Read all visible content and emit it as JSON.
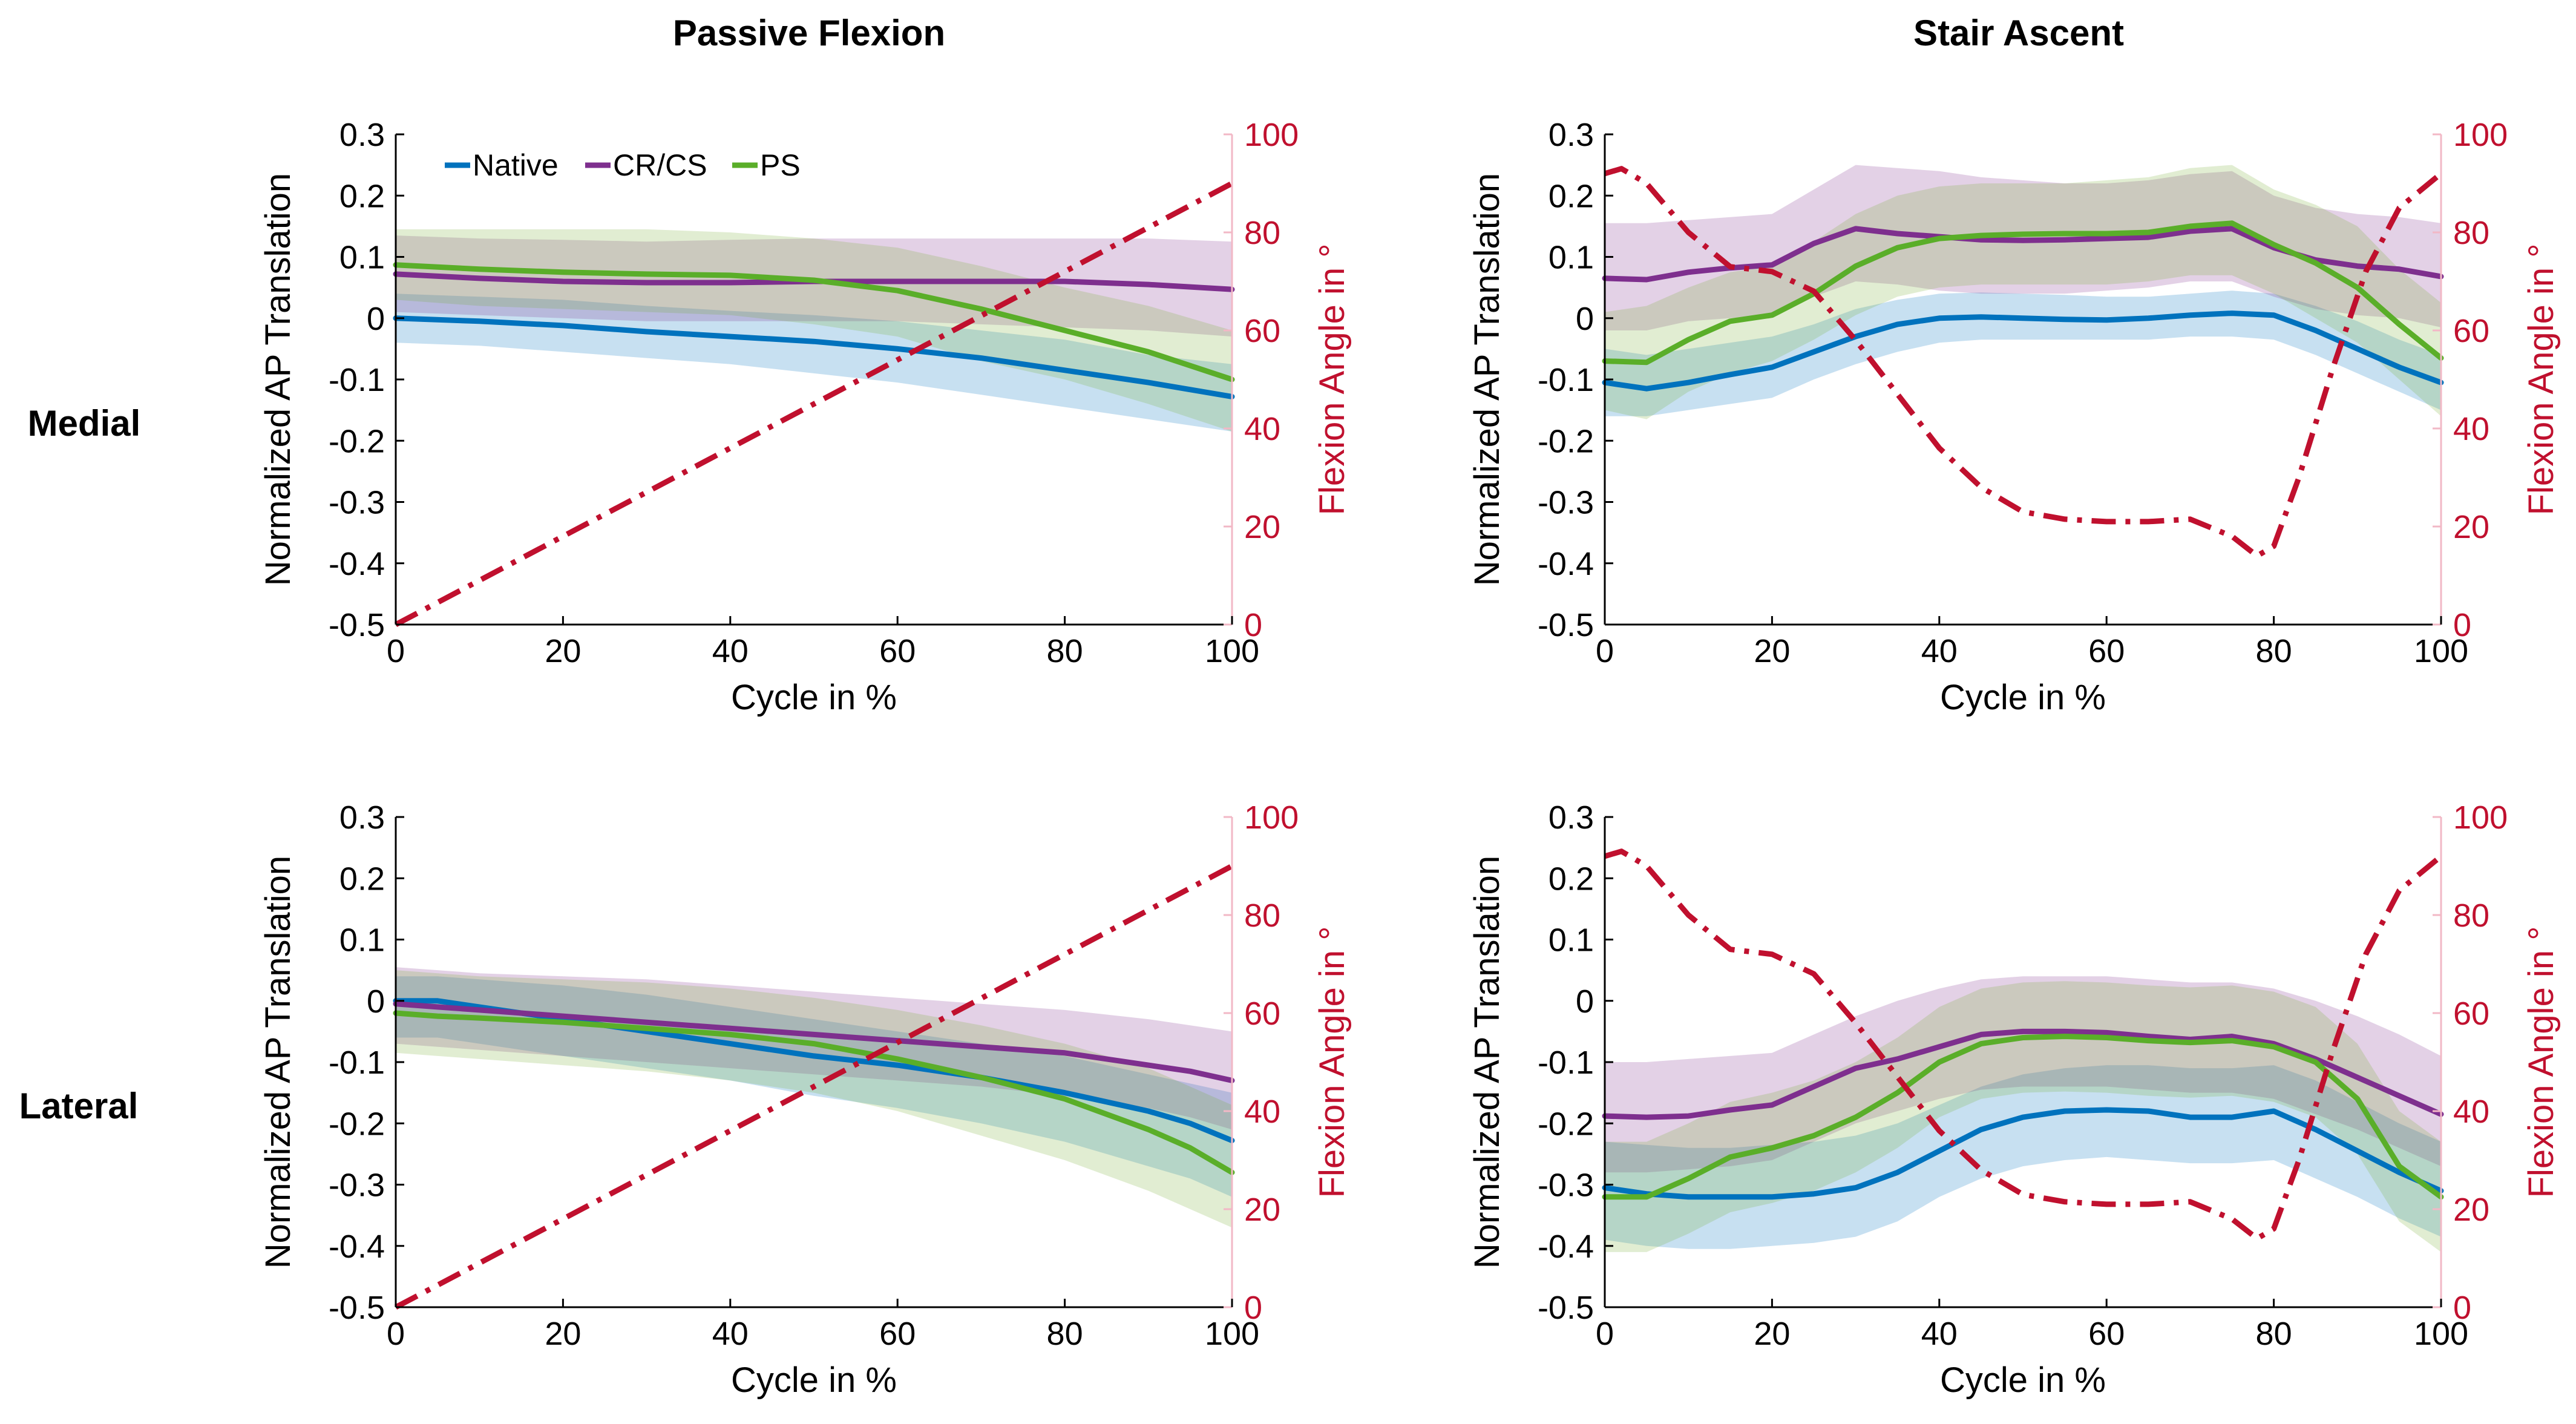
{
  "colors": {
    "native": "#0072BD",
    "cr_cs": "#7E2F8E",
    "ps": "#5AAE29",
    "flexion": "#C0102E",
    "native_band": "#0072BD",
    "cr_cs_band": "#7E2F8E",
    "ps_band": "#77AC30"
  },
  "column_titles": [
    "Passive Flexion",
    "Stair Ascent"
  ],
  "row_labels": [
    "Medial",
    "Lateral"
  ],
  "legend": [
    "Native",
    "CR/CS",
    "PS"
  ],
  "chart_data": [
    {
      "id": "medial-passive",
      "type": "line",
      "xlabel": "Cycle in %",
      "ylabel": "Normalized AP Translation",
      "y2label": "Flexion Angle in °",
      "xlim": [
        0,
        100
      ],
      "ylim": [
        -0.5,
        0.3
      ],
      "y2lim": [
        0,
        100
      ],
      "xticks": [
        "0",
        "20",
        "40",
        "60",
        "80",
        "100"
      ],
      "yticks": [
        "0.3",
        "0.2",
        "0.1",
        "0",
        "-0.1",
        "-0.2",
        "-0.3",
        "-0.4",
        "-0.5"
      ],
      "y2ticks": [
        "100",
        "80",
        "60",
        "40",
        "20",
        "0"
      ],
      "legend_position": "top-left",
      "x": [
        0,
        10,
        20,
        30,
        40,
        50,
        60,
        70,
        80,
        90,
        100
      ],
      "series": [
        {
          "name": "Native",
          "key": "native",
          "values": [
            0.0,
            -0.005,
            -0.012,
            -0.022,
            -0.03,
            -0.038,
            -0.05,
            -0.065,
            -0.085,
            -0.105,
            -0.128
          ],
          "lower": [
            -0.04,
            -0.045,
            -0.055,
            -0.065,
            -0.075,
            -0.09,
            -0.105,
            -0.125,
            -0.145,
            -0.165,
            -0.185
          ],
          "upper": [
            0.04,
            0.035,
            0.03,
            0.02,
            0.012,
            0.005,
            -0.005,
            -0.02,
            -0.035,
            -0.06,
            -0.075
          ]
        },
        {
          "name": "CR/CS",
          "key": "cr_cs",
          "values": [
            0.072,
            0.065,
            0.06,
            0.058,
            0.058,
            0.06,
            0.06,
            0.06,
            0.06,
            0.055,
            0.047
          ],
          "lower": [
            0.01,
            0.005,
            0.0,
            -0.005,
            -0.005,
            -0.005,
            -0.005,
            -0.01,
            -0.015,
            -0.02,
            -0.03
          ],
          "upper": [
            0.135,
            0.13,
            0.128,
            0.125,
            0.128,
            0.13,
            0.13,
            0.13,
            0.13,
            0.13,
            0.125
          ]
        },
        {
          "name": "PS",
          "key": "ps",
          "values": [
            0.087,
            0.08,
            0.075,
            0.072,
            0.07,
            0.062,
            0.045,
            0.015,
            -0.02,
            -0.055,
            -0.1
          ],
          "lower": [
            0.03,
            0.02,
            0.015,
            0.01,
            0.005,
            -0.01,
            -0.03,
            -0.07,
            -0.1,
            -0.14,
            -0.185
          ],
          "upper": [
            0.145,
            0.145,
            0.145,
            0.145,
            0.14,
            0.13,
            0.115,
            0.085,
            0.05,
            0.02,
            -0.02
          ]
        }
      ],
      "flexion": {
        "name": "Flexion Angle",
        "x": [
          0,
          100
        ],
        "values": [
          0,
          90
        ]
      }
    },
    {
      "id": "medial-stair",
      "type": "line",
      "xlabel": "Cycle in %",
      "ylabel": "Normalized AP Translation",
      "y2label": "Flexion Angle in °",
      "xlim": [
        0,
        100
      ],
      "ylim": [
        -0.5,
        0.3
      ],
      "y2lim": [
        0,
        100
      ],
      "xticks": [
        "0",
        "20",
        "40",
        "60",
        "80",
        "100"
      ],
      "yticks": [
        "0.3",
        "0.2",
        "0.1",
        "0",
        "-0.1",
        "-0.2",
        "-0.3",
        "-0.4",
        "-0.5"
      ],
      "y2ticks": [
        "100",
        "80",
        "60",
        "40",
        "20",
        "0"
      ],
      "x": [
        0,
        5,
        10,
        15,
        20,
        25,
        30,
        35,
        40,
        45,
        50,
        55,
        60,
        65,
        70,
        75,
        80,
        85,
        90,
        95,
        100
      ],
      "series": [
        {
          "name": "Native",
          "key": "native",
          "values": [
            -0.105,
            -0.115,
            -0.105,
            -0.092,
            -0.08,
            -0.055,
            -0.03,
            -0.01,
            0.0,
            0.002,
            0.0,
            -0.002,
            -0.003,
            0.0,
            0.005,
            0.008,
            0.005,
            -0.02,
            -0.05,
            -0.08,
            -0.105
          ],
          "lower": [
            -0.16,
            -0.16,
            -0.15,
            -0.14,
            -0.13,
            -0.1,
            -0.075,
            -0.055,
            -0.04,
            -0.035,
            -0.035,
            -0.035,
            -0.035,
            -0.035,
            -0.03,
            -0.03,
            -0.035,
            -0.06,
            -0.09,
            -0.12,
            -0.15
          ],
          "upper": [
            -0.05,
            -0.06,
            -0.05,
            -0.04,
            -0.03,
            -0.01,
            0.015,
            0.03,
            0.04,
            0.042,
            0.04,
            0.038,
            0.035,
            0.035,
            0.04,
            0.045,
            0.04,
            0.02,
            -0.005,
            -0.035,
            -0.06
          ]
        },
        {
          "name": "CR/CS",
          "key": "cr_cs",
          "values": [
            0.065,
            0.063,
            0.075,
            0.082,
            0.087,
            0.122,
            0.146,
            0.138,
            0.133,
            0.128,
            0.127,
            0.128,
            0.13,
            0.132,
            0.142,
            0.146,
            0.115,
            0.095,
            0.085,
            0.08,
            0.068
          ],
          "lower": [
            -0.02,
            -0.02,
            -0.005,
            0.0,
            0.005,
            0.035,
            0.06,
            0.055,
            0.045,
            0.04,
            0.04,
            0.04,
            0.045,
            0.05,
            0.06,
            0.06,
            0.035,
            0.015,
            0.005,
            0.0,
            -0.015
          ],
          "upper": [
            0.155,
            0.155,
            0.16,
            0.165,
            0.17,
            0.21,
            0.25,
            0.245,
            0.24,
            0.23,
            0.225,
            0.22,
            0.22,
            0.225,
            0.235,
            0.24,
            0.2,
            0.18,
            0.17,
            0.165,
            0.155
          ]
        },
        {
          "name": "PS",
          "key": "ps",
          "values": [
            -0.07,
            -0.072,
            -0.035,
            -0.005,
            0.005,
            0.04,
            0.085,
            0.115,
            0.13,
            0.135,
            0.137,
            0.138,
            0.138,
            0.14,
            0.15,
            0.155,
            0.12,
            0.09,
            0.05,
            -0.01,
            -0.065
          ],
          "lower": [
            -0.15,
            -0.165,
            -0.12,
            -0.09,
            -0.07,
            -0.035,
            0.005,
            0.035,
            0.05,
            0.055,
            0.055,
            0.055,
            0.055,
            0.06,
            0.07,
            0.07,
            0.04,
            0.0,
            -0.04,
            -0.1,
            -0.16
          ],
          "upper": [
            0.01,
            0.02,
            0.05,
            0.075,
            0.085,
            0.125,
            0.17,
            0.2,
            0.215,
            0.22,
            0.22,
            0.22,
            0.225,
            0.23,
            0.245,
            0.25,
            0.21,
            0.185,
            0.15,
            0.08,
            0.025
          ]
        }
      ],
      "flexion": {
        "name": "Flexion Angle",
        "x": [
          0,
          2,
          5,
          10,
          15,
          20,
          25,
          30,
          35,
          40,
          45,
          50,
          55,
          60,
          65,
          70,
          75,
          78,
          80,
          83,
          87,
          91,
          95,
          100
        ],
        "values": [
          92,
          93,
          90,
          80,
          73,
          72,
          68,
          58,
          47,
          36,
          28,
          23,
          21.5,
          21,
          21,
          21.5,
          18,
          14,
          16,
          30,
          52,
          72,
          85,
          92
        ]
      }
    },
    {
      "id": "lateral-passive",
      "type": "line",
      "xlabel": "Cycle in %",
      "ylabel": "Normalized AP Translation",
      "y2label": "Flexion Angle in °",
      "xlim": [
        0,
        100
      ],
      "ylim": [
        -0.5,
        0.3
      ],
      "y2lim": [
        0,
        100
      ],
      "xticks": [
        "0",
        "20",
        "40",
        "60",
        "80",
        "100"
      ],
      "yticks": [
        "0.3",
        "0.2",
        "0.1",
        "0",
        "-0.1",
        "-0.2",
        "-0.3",
        "-0.4",
        "-0.5"
      ],
      "y2ticks": [
        "100",
        "80",
        "60",
        "40",
        "20",
        "0"
      ],
      "x": [
        0,
        5,
        10,
        20,
        30,
        40,
        50,
        60,
        70,
        80,
        90,
        95,
        100
      ],
      "series": [
        {
          "name": "Native",
          "key": "native",
          "values": [
            0.0,
            0.0,
            -0.01,
            -0.03,
            -0.05,
            -0.07,
            -0.09,
            -0.105,
            -0.125,
            -0.15,
            -0.18,
            -0.2,
            -0.228
          ],
          "lower": [
            -0.06,
            -0.06,
            -0.07,
            -0.09,
            -0.11,
            -0.13,
            -0.155,
            -0.175,
            -0.2,
            -0.23,
            -0.27,
            -0.29,
            -0.32
          ],
          "upper": [
            0.04,
            0.04,
            0.035,
            0.025,
            0.01,
            -0.01,
            -0.03,
            -0.05,
            -0.07,
            -0.09,
            -0.12,
            -0.135,
            -0.15
          ]
        },
        {
          "name": "CR/CS",
          "key": "cr_cs",
          "values": [
            -0.005,
            -0.01,
            -0.015,
            -0.025,
            -0.035,
            -0.045,
            -0.055,
            -0.065,
            -0.075,
            -0.085,
            -0.105,
            -0.115,
            -0.13
          ],
          "lower": [
            -0.07,
            -0.075,
            -0.08,
            -0.09,
            -0.1,
            -0.11,
            -0.12,
            -0.13,
            -0.14,
            -0.155,
            -0.175,
            -0.19,
            -0.21
          ],
          "upper": [
            0.055,
            0.05,
            0.045,
            0.04,
            0.035,
            0.025,
            0.015,
            0.005,
            -0.005,
            -0.015,
            -0.03,
            -0.04,
            -0.05
          ]
        },
        {
          "name": "PS",
          "key": "ps",
          "values": [
            -0.02,
            -0.025,
            -0.028,
            -0.035,
            -0.045,
            -0.055,
            -0.07,
            -0.095,
            -0.125,
            -0.16,
            -0.21,
            -0.24,
            -0.28
          ],
          "lower": [
            -0.085,
            -0.09,
            -0.095,
            -0.105,
            -0.115,
            -0.13,
            -0.15,
            -0.18,
            -0.22,
            -0.26,
            -0.31,
            -0.34,
            -0.37
          ],
          "upper": [
            0.05,
            0.045,
            0.04,
            0.035,
            0.03,
            0.02,
            0.005,
            -0.015,
            -0.04,
            -0.07,
            -0.11,
            -0.14,
            -0.17
          ]
        }
      ],
      "flexion": {
        "name": "Flexion Angle",
        "x": [
          0,
          100
        ],
        "values": [
          0,
          90
        ]
      }
    },
    {
      "id": "lateral-stair",
      "type": "line",
      "xlabel": "Cycle in %",
      "ylabel": "Normalized AP Translation",
      "y2label": "Flexion Angle in °",
      "xlim": [
        0,
        100
      ],
      "ylim": [
        -0.5,
        0.3
      ],
      "y2lim": [
        0,
        100
      ],
      "xticks": [
        "0",
        "20",
        "40",
        "60",
        "80",
        "100"
      ],
      "yticks": [
        "0.3",
        "0.2",
        "0.1",
        "0",
        "-0.1",
        "-0.2",
        "-0.3",
        "-0.4",
        "-0.5"
      ],
      "y2ticks": [
        "100",
        "80",
        "60",
        "40",
        "20",
        "0"
      ],
      "x": [
        0,
        5,
        10,
        15,
        20,
        25,
        30,
        35,
        40,
        45,
        50,
        55,
        60,
        65,
        70,
        75,
        80,
        85,
        90,
        95,
        100
      ],
      "series": [
        {
          "name": "Native",
          "key": "native",
          "values": [
            -0.305,
            -0.315,
            -0.32,
            -0.32,
            -0.32,
            -0.315,
            -0.305,
            -0.28,
            -0.245,
            -0.21,
            -0.19,
            -0.18,
            -0.178,
            -0.18,
            -0.19,
            -0.19,
            -0.18,
            -0.21,
            -0.245,
            -0.28,
            -0.31
          ],
          "lower": [
            -0.39,
            -0.4,
            -0.405,
            -0.405,
            -0.4,
            -0.395,
            -0.385,
            -0.36,
            -0.32,
            -0.29,
            -0.27,
            -0.26,
            -0.255,
            -0.26,
            -0.265,
            -0.265,
            -0.26,
            -0.29,
            -0.32,
            -0.355,
            -0.385
          ],
          "upper": [
            -0.23,
            -0.235,
            -0.24,
            -0.24,
            -0.235,
            -0.23,
            -0.22,
            -0.2,
            -0.17,
            -0.14,
            -0.12,
            -0.11,
            -0.105,
            -0.105,
            -0.11,
            -0.11,
            -0.105,
            -0.13,
            -0.165,
            -0.2,
            -0.23
          ]
        },
        {
          "name": "CR/CS",
          "key": "cr_cs",
          "values": [
            -0.188,
            -0.19,
            -0.188,
            -0.178,
            -0.17,
            -0.14,
            -0.11,
            -0.095,
            -0.075,
            -0.055,
            -0.05,
            -0.05,
            -0.052,
            -0.058,
            -0.063,
            -0.058,
            -0.07,
            -0.095,
            -0.125,
            -0.155,
            -0.185
          ],
          "lower": [
            -0.28,
            -0.28,
            -0.275,
            -0.27,
            -0.26,
            -0.23,
            -0.2,
            -0.18,
            -0.16,
            -0.145,
            -0.14,
            -0.14,
            -0.14,
            -0.145,
            -0.15,
            -0.15,
            -0.16,
            -0.185,
            -0.21,
            -0.24,
            -0.27
          ],
          "upper": [
            -0.1,
            -0.1,
            -0.095,
            -0.09,
            -0.085,
            -0.055,
            -0.025,
            0.0,
            0.02,
            0.035,
            0.04,
            0.04,
            0.04,
            0.035,
            0.03,
            0.03,
            0.02,
            0.0,
            -0.025,
            -0.055,
            -0.09
          ]
        },
        {
          "name": "PS",
          "key": "ps",
          "values": [
            -0.32,
            -0.32,
            -0.29,
            -0.255,
            -0.24,
            -0.22,
            -0.19,
            -0.15,
            -0.1,
            -0.07,
            -0.06,
            -0.058,
            -0.06,
            -0.065,
            -0.068,
            -0.065,
            -0.075,
            -0.1,
            -0.16,
            -0.27,
            -0.32
          ],
          "lower": [
            -0.41,
            -0.41,
            -0.38,
            -0.345,
            -0.33,
            -0.31,
            -0.28,
            -0.24,
            -0.19,
            -0.16,
            -0.15,
            -0.148,
            -0.15,
            -0.155,
            -0.158,
            -0.155,
            -0.165,
            -0.19,
            -0.25,
            -0.36,
            -0.41
          ],
          "upper": [
            -0.23,
            -0.23,
            -0.2,
            -0.165,
            -0.15,
            -0.13,
            -0.1,
            -0.06,
            -0.01,
            0.02,
            0.03,
            0.032,
            0.03,
            0.025,
            0.022,
            0.025,
            0.015,
            -0.01,
            -0.07,
            -0.18,
            -0.23
          ]
        }
      ],
      "flexion": {
        "name": "Flexion Angle",
        "x": [
          0,
          2,
          5,
          10,
          15,
          20,
          25,
          30,
          35,
          40,
          45,
          50,
          55,
          60,
          65,
          70,
          75,
          78,
          80,
          83,
          87,
          91,
          95,
          100
        ],
        "values": [
          92,
          93,
          90,
          80,
          73,
          72,
          68,
          58,
          47,
          36,
          28,
          23,
          21.5,
          21,
          21,
          21.5,
          18,
          14,
          16,
          30,
          52,
          72,
          85,
          92
        ]
      }
    }
  ]
}
